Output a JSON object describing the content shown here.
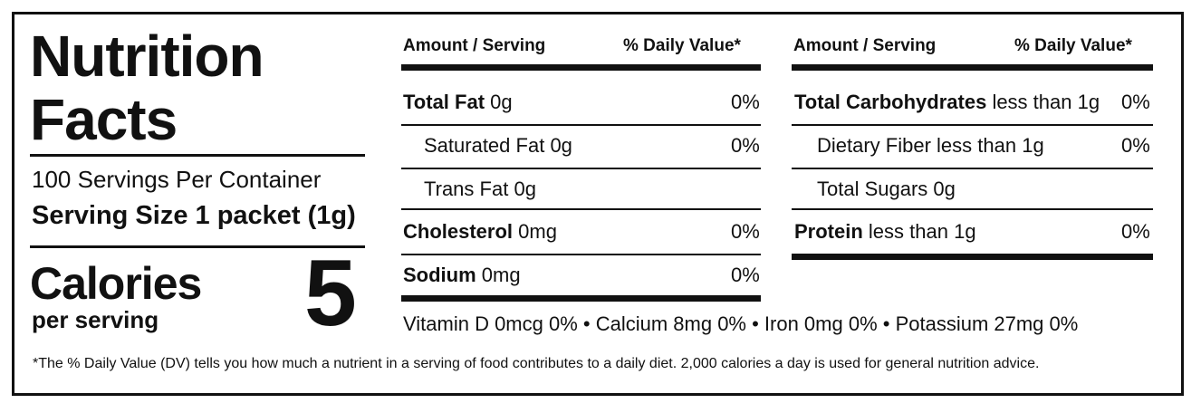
{
  "title_line1": "Nutrition",
  "title_line2": "Facts",
  "servings_per_container": "100 Servings Per Container",
  "serving_size": "Serving Size 1 packet (1g)",
  "calories_label": "Calories",
  "per_serving_label": "per serving",
  "calories_value": "5",
  "left_table": {
    "header_amount": "Amount / Serving",
    "header_dv": "% Daily Value*",
    "rows": [
      {
        "name": "Total Fat",
        "amount": "0g",
        "dv": "0%",
        "bold": true
      },
      {
        "name": "Saturated Fat",
        "amount": "0g",
        "dv": "0%",
        "bold": false
      },
      {
        "name": "Trans Fat",
        "amount": "0g",
        "dv": "",
        "bold": false
      },
      {
        "name": "Cholesterol",
        "amount": "0mg",
        "dv": "0%",
        "bold": true
      },
      {
        "name": "Sodium",
        "amount": "0mg",
        "dv": "0%",
        "bold": true
      }
    ]
  },
  "right_table": {
    "header_amount": "Amount / Serving",
    "header_dv": "% Daily Value*",
    "rows": [
      {
        "name": "Total Carbohydrates",
        "amount": "less than 1g",
        "dv": "0%",
        "bold": true
      },
      {
        "name": "Dietary Fiber",
        "amount": "less than 1g",
        "dv": "0%",
        "bold": false
      },
      {
        "name": "Total Sugars",
        "amount": "0g",
        "dv": "",
        "bold": false
      },
      {
        "name": "Protein",
        "amount": "less than 1g",
        "dv": "0%",
        "bold": true
      }
    ]
  },
  "vitamins_line": "Vitamin D 0mcg 0%  •  Calcium 8mg 0%  •  Iron 0mg 0%  •  Potassium 27mg 0%",
  "footnote": "*The % Daily Value (DV) tells you how much a nutrient in a serving of food contributes to a daily diet. 2,000 calories a day is used for general nutrition advice."
}
